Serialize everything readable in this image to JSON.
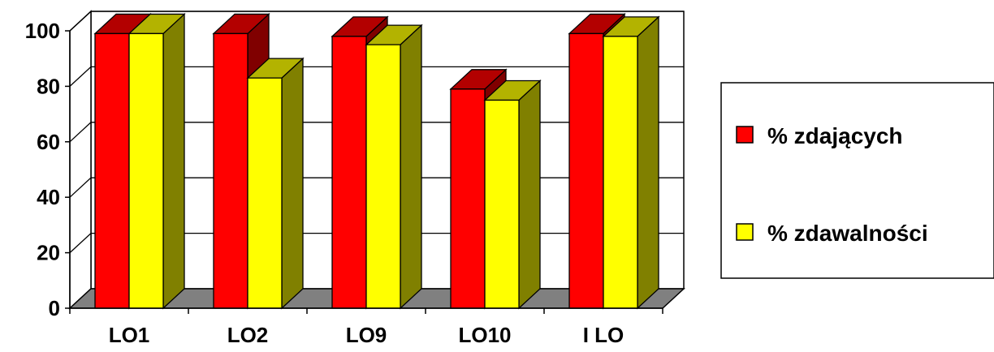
{
  "chart_data": {
    "type": "bar",
    "categories": [
      "LO1",
      "LO2",
      "LO9",
      "LO10",
      "I LO"
    ],
    "series": [
      {
        "name": "% zdających",
        "values": [
          99,
          99,
          98,
          79,
          99
        ],
        "color": "#ff0000",
        "top_color": "#b30000",
        "side_color": "#800000"
      },
      {
        "name": "% zdawalności",
        "values": [
          99,
          83,
          95,
          75,
          98
        ],
        "color": "#ffff00",
        "top_color": "#b3b300",
        "side_color": "#808000"
      }
    ],
    "yticks": [
      "0",
      "20",
      "40",
      "60",
      "80",
      "100"
    ],
    "ylim": [
      0,
      100
    ],
    "grid": true,
    "floor_color": "#808080",
    "legend_position": "right",
    "xlabel": "",
    "ylabel": "",
    "title": ""
  }
}
